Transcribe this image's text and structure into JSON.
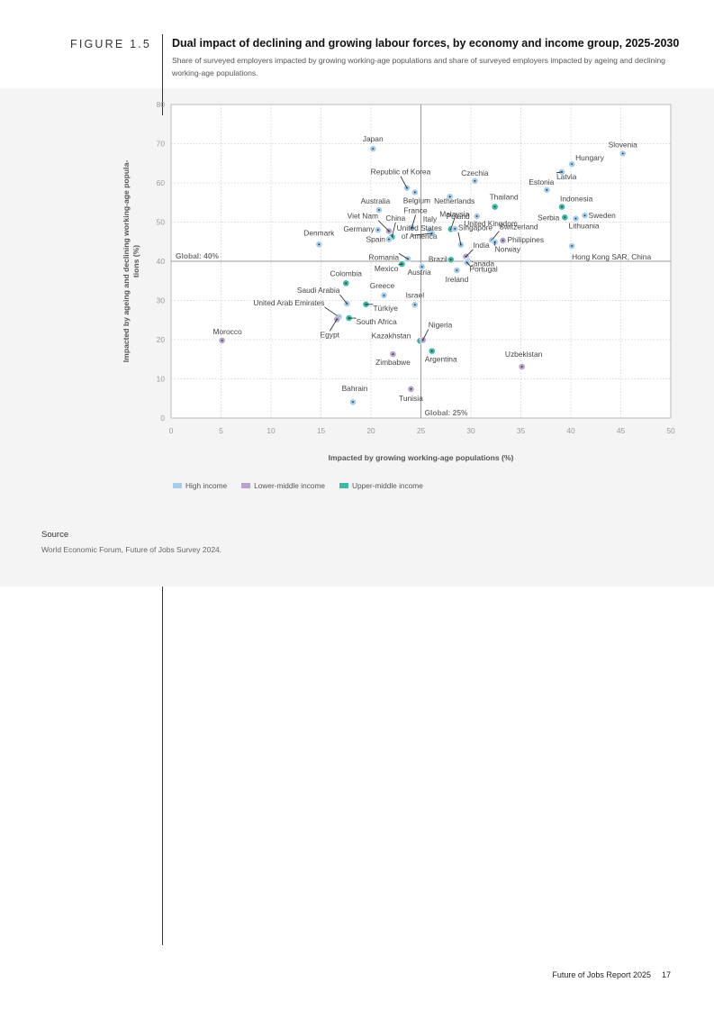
{
  "figure": {
    "label": "FIGURE 1.5",
    "title": "Dual impact of declining and growing labour forces, by economy and income group, 2025-2030",
    "subtitle": "Share of surveyed employers impacted by growing working-age populations and share of surveyed employers impacted by ageing and declining working-age populations."
  },
  "chart_data": {
    "type": "scatter",
    "xlabel": "Impacted by growing working-age populations (%)",
    "ylabel": "Impacted by ageing and declining working-age popula-tions (%)",
    "xlim": [
      0,
      50
    ],
    "ylim": [
      0,
      80
    ],
    "xticks": [
      0,
      5,
      10,
      15,
      20,
      25,
      30,
      35,
      40,
      45,
      50
    ],
    "yticks": [
      0,
      10,
      20,
      30,
      40,
      50,
      60,
      70,
      80
    ],
    "grid": true,
    "reference_lines": [
      {
        "axis": "y",
        "value": 40,
        "label": "Global: 40%"
      },
      {
        "axis": "x",
        "value": 25,
        "label": "Global: 25%"
      }
    ],
    "legend_position": "bottom-left",
    "legend": [
      {
        "group": "high",
        "label": "High income",
        "color": "#a6cdea"
      },
      {
        "group": "lower",
        "label": "Lower-middle income",
        "color": "#b7a3cc"
      },
      {
        "group": "upper",
        "label": "Upper-middle income",
        "color": "#3fb8a5"
      }
    ],
    "points": [
      {
        "name": "Japan",
        "x": 20.2,
        "y": 68.7,
        "group": "high"
      },
      {
        "name": "Slovenia",
        "x": 45.2,
        "y": 67.5,
        "group": "high"
      },
      {
        "name": "Hungary",
        "x": 40.1,
        "y": 64.8,
        "group": "high"
      },
      {
        "name": "Latvia",
        "x": 39.1,
        "y": 62.8,
        "group": "high"
      },
      {
        "name": "Czechia",
        "x": 30.4,
        "y": 60.5,
        "group": "high"
      },
      {
        "name": "Estonia",
        "x": 37.6,
        "y": 58.2,
        "group": "high"
      },
      {
        "name": "Republic of Korea",
        "x": 23.6,
        "y": 58.7,
        "group": "high"
      },
      {
        "name": "Belgium",
        "x": 24.4,
        "y": 57.6,
        "group": "high"
      },
      {
        "name": "Netherlands",
        "x": 27.9,
        "y": 56.5,
        "group": "high"
      },
      {
        "name": "Thailand",
        "x": 32.4,
        "y": 53.9,
        "group": "upper"
      },
      {
        "name": "Indonesia",
        "x": 39.1,
        "y": 53.9,
        "group": "upper"
      },
      {
        "name": "Australia",
        "x": 20.8,
        "y": 53.1,
        "group": "high"
      },
      {
        "name": "Poland",
        "x": 30.6,
        "y": 51.5,
        "group": "high"
      },
      {
        "name": "Sweden",
        "x": 41.4,
        "y": 51.7,
        "group": "high"
      },
      {
        "name": "Serbia",
        "x": 39.4,
        "y": 51.2,
        "group": "upper"
      },
      {
        "name": "Lithuania",
        "x": 40.5,
        "y": 50.9,
        "group": "high"
      },
      {
        "name": "Viet Nam",
        "x": 21.8,
        "y": 47.7,
        "group": "lower"
      },
      {
        "name": "China",
        "x": 22.1,
        "y": 46.2,
        "group": "upper"
      },
      {
        "name": "France",
        "x": 24.1,
        "y": 48.6,
        "group": "high"
      },
      {
        "name": "Italy",
        "x": 25.9,
        "y": 47.8,
        "group": "high"
      },
      {
        "name": "Malaysia",
        "x": 28.0,
        "y": 48.2,
        "group": "upper"
      },
      {
        "name": "United Kingdom",
        "x": 28.4,
        "y": 48.3,
        "group": "high"
      },
      {
        "name": "Germany",
        "x": 20.7,
        "y": 48.0,
        "group": "high"
      },
      {
        "name": "Spain",
        "x": 21.8,
        "y": 45.6,
        "group": "high"
      },
      {
        "name": "United States of America",
        "x": 26.1,
        "y": 47.1,
        "group": "high"
      },
      {
        "name": "Singapore",
        "x": 29.0,
        "y": 44.2,
        "group": "high"
      },
      {
        "name": "Switzerland",
        "x": 32.1,
        "y": 45.4,
        "group": "high"
      },
      {
        "name": "Philippines",
        "x": 33.2,
        "y": 45.3,
        "group": "lower"
      },
      {
        "name": "Norway",
        "x": 32.4,
        "y": 44.9,
        "group": "high"
      },
      {
        "name": "India",
        "x": 29.5,
        "y": 41.2,
        "group": "lower"
      },
      {
        "name": "Denmark",
        "x": 14.8,
        "y": 44.3,
        "group": "high"
      },
      {
        "name": "Hong Kong SAR, China",
        "x": 40.1,
        "y": 43.9,
        "group": "high"
      },
      {
        "name": "Romania",
        "x": 23.7,
        "y": 40.6,
        "group": "high"
      },
      {
        "name": "Canada",
        "x": 29.7,
        "y": 40.1,
        "group": "high"
      },
      {
        "name": "Mexico",
        "x": 23.1,
        "y": 39.3,
        "group": "upper"
      },
      {
        "name": "Brazil",
        "x": 28.0,
        "y": 40.4,
        "group": "upper"
      },
      {
        "name": "Portugal",
        "x": 29.6,
        "y": 39.7,
        "group": "high"
      },
      {
        "name": "Austria",
        "x": 25.1,
        "y": 38.6,
        "group": "high"
      },
      {
        "name": "Ireland",
        "x": 28.6,
        "y": 37.7,
        "group": "high"
      },
      {
        "name": "Colombia",
        "x": 17.5,
        "y": 34.4,
        "group": "upper"
      },
      {
        "name": "Greece",
        "x": 21.3,
        "y": 31.3,
        "group": "high"
      },
      {
        "name": "Saudi Arabia",
        "x": 17.6,
        "y": 29.2,
        "group": "high"
      },
      {
        "name": "Türkiye",
        "x": 19.5,
        "y": 29.0,
        "group": "upper"
      },
      {
        "name": "Israel",
        "x": 24.4,
        "y": 28.9,
        "group": "high"
      },
      {
        "name": "United Arab Emirates",
        "x": 16.8,
        "y": 25.8,
        "group": "high"
      },
      {
        "name": "South Africa",
        "x": 17.8,
        "y": 25.5,
        "group": "upper"
      },
      {
        "name": "Egypt",
        "x": 16.6,
        "y": 25.2,
        "group": "lower"
      },
      {
        "name": "Morocco",
        "x": 5.1,
        "y": 19.8,
        "group": "lower"
      },
      {
        "name": "Kazakhstan",
        "x": 24.9,
        "y": 19.7,
        "group": "upper"
      },
      {
        "name": "Nigeria",
        "x": 25.2,
        "y": 19.9,
        "group": "lower"
      },
      {
        "name": "Argentina",
        "x": 26.1,
        "y": 17.1,
        "group": "upper"
      },
      {
        "name": "Zimbabwe",
        "x": 22.2,
        "y": 16.3,
        "group": "lower"
      },
      {
        "name": "Uzbekistan",
        "x": 35.1,
        "y": 13.1,
        "group": "lower"
      },
      {
        "name": "Tunisia",
        "x": 24.0,
        "y": 7.4,
        "group": "lower"
      },
      {
        "name": "Bahrain",
        "x": 18.2,
        "y": 4.1,
        "group": "high"
      }
    ]
  },
  "source": {
    "heading": "Source",
    "text": "World Economic Forum, Future of Jobs Survey 2024."
  },
  "footer": {
    "report": "Future of Jobs Report 2025",
    "page": "17"
  }
}
